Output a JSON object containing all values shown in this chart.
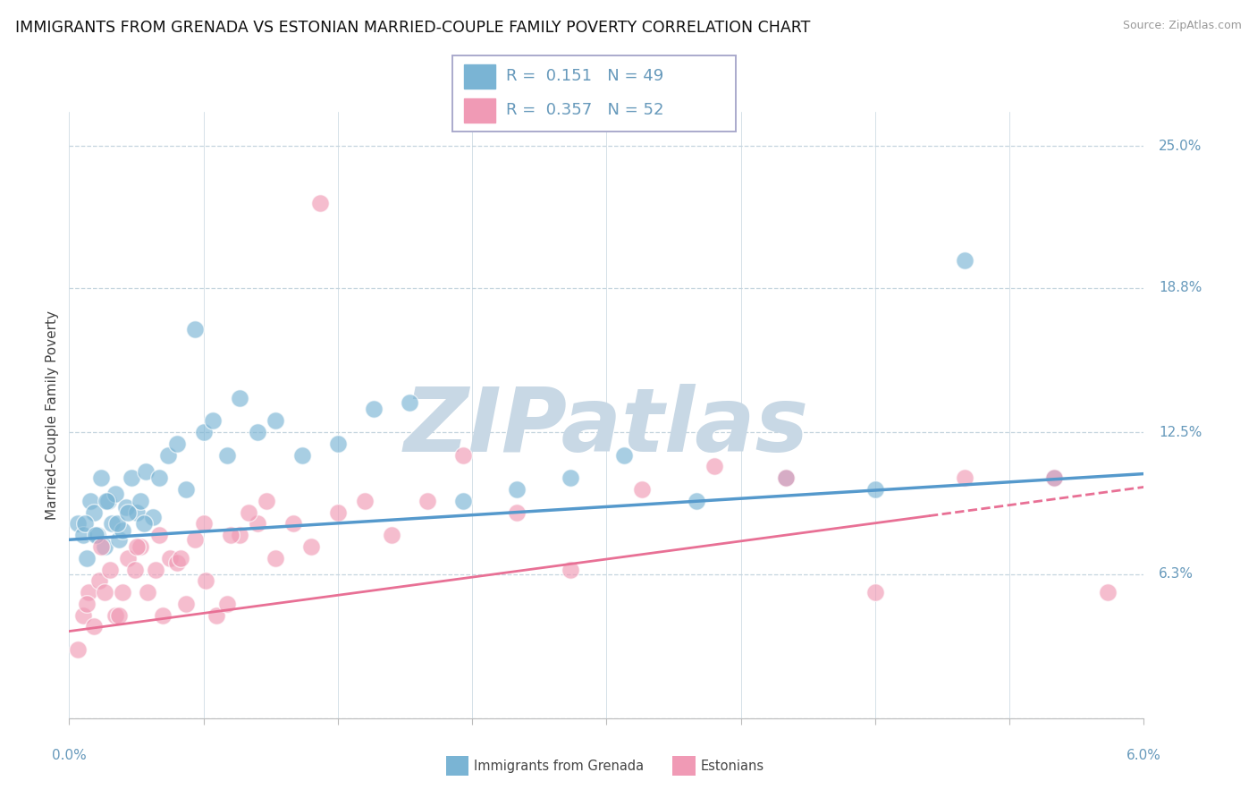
{
  "title": "IMMIGRANTS FROM GRENADA VS ESTONIAN MARRIED-COUPLE FAMILY POVERTY CORRELATION CHART",
  "source": "Source: ZipAtlas.com",
  "xmin": 0.0,
  "xmax": 6.0,
  "ymin": 0.0,
  "ymax": 26.5,
  "yticks": [
    0.0,
    6.3,
    12.5,
    18.8,
    25.0
  ],
  "ytick_labels": [
    "",
    "6.3%",
    "12.5%",
    "18.8%",
    "25.0%"
  ],
  "series1_label": "Immigrants from Grenada",
  "series1_color": "#7ab4d4",
  "series1_R": "0.151",
  "series1_N": "49",
  "series2_label": "Estonians",
  "series2_color": "#f09ab5",
  "series2_R": "0.357",
  "series2_N": "52",
  "watermark_text": "ZIPatlas",
  "watermark_color": "#c8d8e5",
  "grid_color": "#c5d5df",
  "bg_color": "#ffffff",
  "title_color": "#111111",
  "source_color": "#999999",
  "axis_color": "#6699bb",
  "ylabel": "Married-Couple Family Poverty",
  "trend1_color": "#5599cc",
  "trend2_color": "#e87095",
  "trend1_m": 0.48,
  "trend1_b": 7.8,
  "trend2_m": 1.05,
  "trend2_b": 3.8,
  "series1_x": [
    0.05,
    0.08,
    0.1,
    0.12,
    0.14,
    0.16,
    0.18,
    0.2,
    0.22,
    0.24,
    0.26,
    0.28,
    0.3,
    0.32,
    0.35,
    0.38,
    0.4,
    0.43,
    0.47,
    0.5,
    0.55,
    0.6,
    0.65,
    0.7,
    0.75,
    0.8,
    0.88,
    0.95,
    1.05,
    1.15,
    1.3,
    1.5,
    1.7,
    1.9,
    2.2,
    2.5,
    2.8,
    3.1,
    3.5,
    4.0,
    4.5,
    5.0,
    5.5,
    0.09,
    0.15,
    0.21,
    0.27,
    0.33,
    0.42
  ],
  "series1_y": [
    8.5,
    8.0,
    7.0,
    9.5,
    9.0,
    8.0,
    10.5,
    7.5,
    9.5,
    8.5,
    9.8,
    7.8,
    8.2,
    9.2,
    10.5,
    9.0,
    9.5,
    10.8,
    8.8,
    10.5,
    11.5,
    12.0,
    10.0,
    17.0,
    12.5,
    13.0,
    11.5,
    14.0,
    12.5,
    13.0,
    11.5,
    12.0,
    13.5,
    13.8,
    9.5,
    10.0,
    10.5,
    11.5,
    9.5,
    10.5,
    10.0,
    20.0,
    10.5,
    8.5,
    8.0,
    9.5,
    8.5,
    9.0,
    8.5
  ],
  "series2_x": [
    0.05,
    0.08,
    0.11,
    0.14,
    0.17,
    0.2,
    0.23,
    0.26,
    0.3,
    0.33,
    0.37,
    0.4,
    0.44,
    0.48,
    0.52,
    0.56,
    0.6,
    0.65,
    0.7,
    0.76,
    0.82,
    0.88,
    0.95,
    1.05,
    1.15,
    1.25,
    1.35,
    1.5,
    1.65,
    1.8,
    2.0,
    2.2,
    2.5,
    2.8,
    3.2,
    3.6,
    4.0,
    4.5,
    5.0,
    5.5,
    5.8,
    0.1,
    0.18,
    0.28,
    0.38,
    0.5,
    0.62,
    0.75,
    0.9,
    1.0,
    1.1,
    1.4
  ],
  "series2_y": [
    3.0,
    4.5,
    5.5,
    4.0,
    6.0,
    5.5,
    6.5,
    4.5,
    5.5,
    7.0,
    6.5,
    7.5,
    5.5,
    6.5,
    4.5,
    7.0,
    6.8,
    5.0,
    7.8,
    6.0,
    4.5,
    5.0,
    8.0,
    8.5,
    7.0,
    8.5,
    7.5,
    9.0,
    9.5,
    8.0,
    9.5,
    11.5,
    9.0,
    6.5,
    10.0,
    11.0,
    10.5,
    5.5,
    10.5,
    10.5,
    5.5,
    5.0,
    7.5,
    4.5,
    7.5,
    8.0,
    7.0,
    8.5,
    8.0,
    9.0,
    9.5,
    22.5
  ]
}
